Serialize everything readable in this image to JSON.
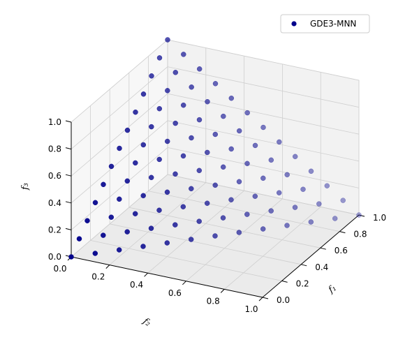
{
  "chart_data": {
    "type": "scatter",
    "projection": "3d",
    "title": "",
    "xlabel": "f₁",
    "ylabel": "f₂",
    "zlabel": "f₃",
    "xlim": [
      0,
      1
    ],
    "ylim": [
      0,
      1
    ],
    "zlim": [
      0,
      1
    ],
    "xticks": [
      "0.0",
      "0.2",
      "0.4",
      "0.6",
      "0.8",
      "1.0"
    ],
    "yticks": [
      "0.0",
      "0.2",
      "0.4",
      "0.6",
      "0.8",
      "1.0"
    ],
    "zticks": [
      "0.0",
      "0.2",
      "0.4",
      "0.6",
      "0.8",
      "1.0"
    ],
    "grid": true,
    "legend": {
      "position": "top-right",
      "entries": [
        "GDE3-MNN"
      ]
    },
    "series": [
      {
        "name": "GDE3-MNN",
        "color": "#00008b",
        "grid_spec": "points on the simplex f1+f2+f3=1 with step 1/12 (91 points)"
      }
    ]
  }
}
